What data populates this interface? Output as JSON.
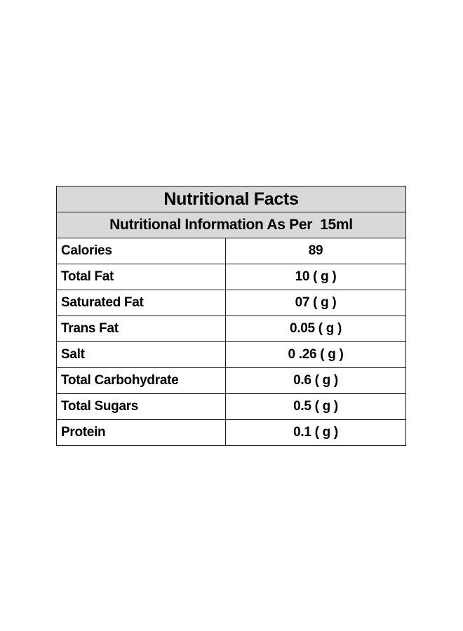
{
  "title": "Nutritional Facts",
  "subtitle": "Nutritional Information As Per  15ml",
  "rows": [
    {
      "nutrient": "Calories",
      "amount": "89"
    },
    {
      "nutrient": "Total Fat",
      "amount": "10 ( g )"
    },
    {
      "nutrient": "Saturated Fat",
      "amount": "07 ( g )"
    },
    {
      "nutrient": "Trans Fat",
      "amount": "0.05 ( g )"
    },
    {
      "nutrient": "Salt",
      "amount": "0 .26 ( g )"
    },
    {
      "nutrient": "Total Carbohydrate",
      "amount": "0.6 ( g )"
    },
    {
      "nutrient": "Total Sugars",
      "amount": "0.5 ( g )"
    },
    {
      "nutrient": "Protein",
      "amount": "0.1 ( g )"
    }
  ],
  "colors": {
    "header_background": "#d9d9d9",
    "border": "#1a1a1a",
    "text": "#000000"
  }
}
